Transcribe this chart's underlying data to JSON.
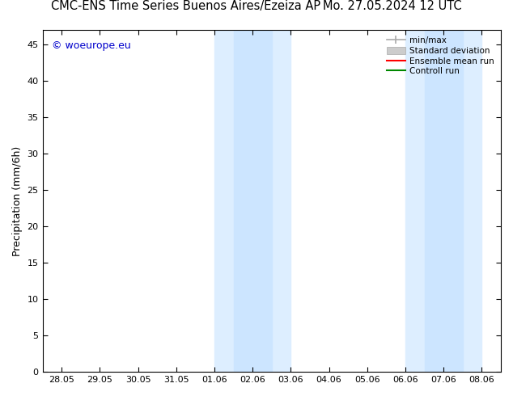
{
  "title_left": "CMC-ENS Time Series Buenos Aires/Ezeiza AP",
  "title_right": "Mo. 27.05.2024 12 UTC",
  "ylabel": "Precipitation (mm/6h)",
  "watermark": "© woeurope.eu",
  "watermark_color": "#0000cc",
  "ylim": [
    0,
    47
  ],
  "yticks": [
    0,
    5,
    10,
    15,
    20,
    25,
    30,
    35,
    40,
    45
  ],
  "xtick_labels": [
    "28.05",
    "29.05",
    "30.05",
    "31.05",
    "01.06",
    "02.06",
    "03.06",
    "04.06",
    "05.06",
    "06.06",
    "07.06",
    "08.06"
  ],
  "xtick_positions": [
    0,
    1,
    2,
    3,
    4,
    5,
    6,
    7,
    8,
    9,
    10,
    11
  ],
  "xlim": [
    -0.5,
    11.5
  ],
  "background_color": "#ffffff",
  "shaded_regions": [
    {
      "xmin": 4.0,
      "xmax": 6.0,
      "color": "#ddeeff"
    },
    {
      "xmin": 9.0,
      "xmax": 11.0,
      "color": "#ddeeff"
    }
  ],
  "inner_shaded": [
    {
      "xmin": 4.5,
      "xmax": 5.5,
      "color": "#cce5ff"
    },
    {
      "xmin": 9.5,
      "xmax": 10.5,
      "color": "#cce5ff"
    }
  ],
  "legend_labels": [
    "min/max",
    "Standard deviation",
    "Ensemble mean run",
    "Controll run"
  ],
  "legend_colors": [
    "#aaaaaa",
    "#cccccc",
    "#ff0000",
    "#008800"
  ],
  "font_family": "DejaVu Sans",
  "title_fontsize": 10.5,
  "tick_fontsize": 8,
  "label_fontsize": 9,
  "watermark_fontsize": 9
}
